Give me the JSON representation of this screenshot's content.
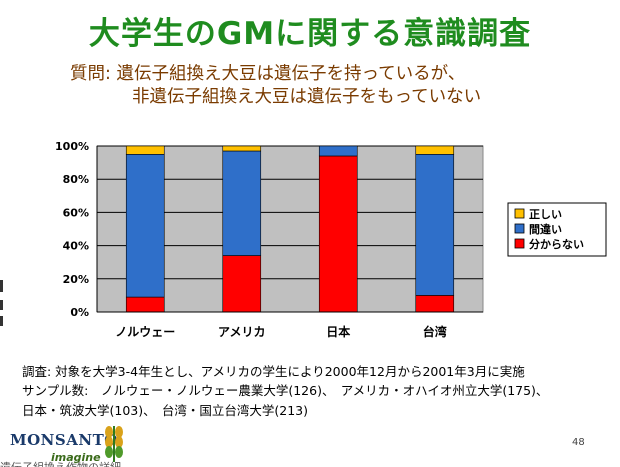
{
  "slide": {
    "title": "大学生のGMに関する意識調査",
    "question_line1": "質問: 遺伝子組換え大豆は遺伝子を持っているが、",
    "question_line2": "非遺伝子組換え大豆は遺伝子をもっていない"
  },
  "chart_data": {
    "type": "bar",
    "stacked": true,
    "categories": [
      "ノルウェー",
      "アメリカ",
      "日本",
      "台湾"
    ],
    "series": [
      {
        "name": "分からない",
        "color": "#ff0000",
        "values": [
          9,
          34,
          94,
          10
        ]
      },
      {
        "name": "間違い",
        "color": "#2f6fc9",
        "values": [
          86,
          63,
          6,
          85
        ]
      },
      {
        "name": "正しい",
        "color": "#ffc000",
        "values": [
          5,
          3,
          0,
          5
        ]
      }
    ],
    "ylim": [
      0,
      100
    ],
    "yticks": [
      "0%",
      "20%",
      "40%",
      "60%",
      "80%",
      "100%"
    ],
    "grid": true,
    "legend_position": "right",
    "plot_background": "#c0c0c0"
  },
  "notes": {
    "line1": "調査: 対象を大学3-4年生とし、アメリカの学生により2000年12月から2001年3月に実施",
    "line2": "サンプル数:　ノルウェー・ノルウェー農業大学(126)、　アメリカ・オハイオ州立大学(175)、",
    "line3": "日本・筑波大学(103)、　台湾・国立台湾大学(213)"
  },
  "footer": {
    "logo_text": "MONSANTO",
    "logo_tagline": "imagine",
    "page_number": "48",
    "cutoff_text": "遺伝子組換え作物の詳細"
  }
}
